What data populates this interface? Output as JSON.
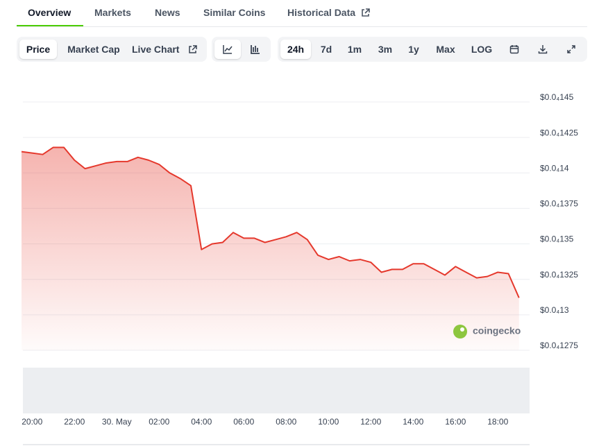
{
  "tabs": [
    "Overview",
    "Markets",
    "News",
    "Similar Coins",
    "Historical Data"
  ],
  "chart_options": [
    "Price",
    "Market Cap",
    "Live Chart"
  ],
  "ranges": [
    "24h",
    "7d",
    "1m",
    "3m",
    "1y",
    "Max",
    "LOG"
  ],
  "watermark": "coingecko",
  "chart_data": {
    "type": "line",
    "x": [
      "19:30",
      "20:00",
      "20:30",
      "21:00",
      "21:30",
      "22:00",
      "22:30",
      "23:00",
      "23:30",
      "00:00",
      "00:30",
      "01:00",
      "01:30",
      "02:00",
      "02:30",
      "03:00",
      "03:30",
      "04:00",
      "04:30",
      "05:00",
      "05:30",
      "06:00",
      "06:30",
      "07:00",
      "07:30",
      "08:00",
      "08:30",
      "09:00",
      "09:30",
      "10:00",
      "10:30",
      "11:00",
      "11:30",
      "12:00",
      "12:30",
      "13:00",
      "13:30",
      "14:00",
      "14:30",
      "15:00",
      "15:30",
      "16:00",
      "16:30",
      "17:00",
      "17:30",
      "18:00",
      "18:30",
      "19:00"
    ],
    "values": [
      1.415e-05,
      1.414e-05,
      1.413e-05,
      1.418e-05,
      1.418e-05,
      1.409e-05,
      1.403e-05,
      1.405e-05,
      1.407e-05,
      1.408e-05,
      1.408e-05,
      1.411e-05,
      1.409e-05,
      1.406e-05,
      1.4e-05,
      1.396e-05,
      1.391e-05,
      1.346e-05,
      1.35e-05,
      1.351e-05,
      1.358e-05,
      1.354e-05,
      1.354e-05,
      1.351e-05,
      1.353e-05,
      1.355e-05,
      1.358e-05,
      1.353e-05,
      1.342e-05,
      1.339e-05,
      1.341e-05,
      1.338e-05,
      1.339e-05,
      1.337e-05,
      1.33e-05,
      1.332e-05,
      1.332e-05,
      1.336e-05,
      1.336e-05,
      1.332e-05,
      1.328e-05,
      1.334e-05,
      1.33e-05,
      1.326e-05,
      1.327e-05,
      1.33e-05,
      1.329e-05,
      1.312e-05
    ],
    "color": "#e5382c",
    "ylim": [
      1.275e-05,
      1.45e-05
    ],
    "yticks": [
      {
        "value": 1.45e-05,
        "label": "$0.0₄145"
      },
      {
        "value": 1.425e-05,
        "label": "$0.0₄1425"
      },
      {
        "value": 1.4e-05,
        "label": "$0.0₄14"
      },
      {
        "value": 1.375e-05,
        "label": "$0.0₄1375"
      },
      {
        "value": 1.35e-05,
        "label": "$0.0₄135"
      },
      {
        "value": 1.325e-05,
        "label": "$0.0₄1325"
      },
      {
        "value": 1.3e-05,
        "label": "$0.0₄13"
      },
      {
        "value": 1.275e-05,
        "label": "$0.0₄1275"
      }
    ],
    "xticks": [
      "20:00",
      "22:00",
      {
        "value": "00:00",
        "label": "30. May"
      },
      "02:00",
      "04:00",
      "06:00",
      "08:00",
      "10:00",
      "12:00",
      "14:00",
      "16:00",
      "18:00"
    ],
    "grid": true
  }
}
